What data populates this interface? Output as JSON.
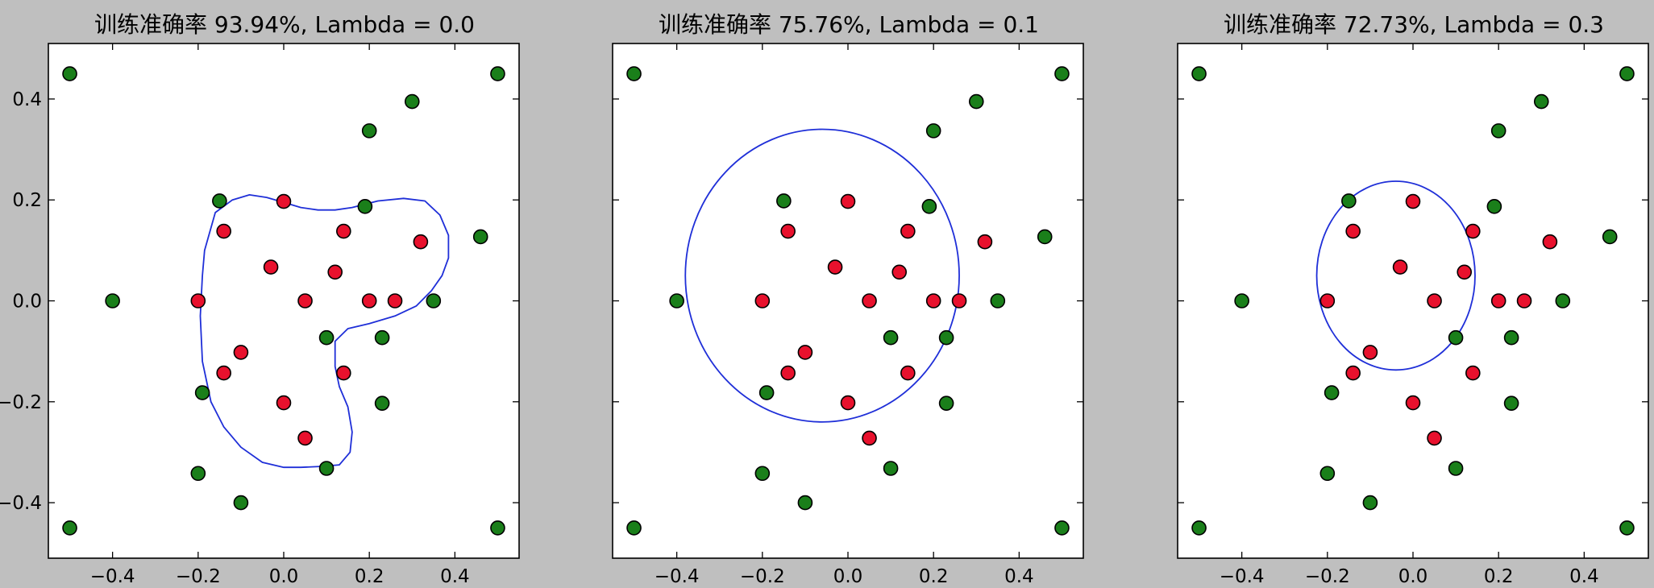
{
  "window": {
    "background": "#bfbfbf"
  },
  "chart_data": [
    {
      "type": "scatter",
      "title": "训练准确率 93.94%, Lambda = 0.0",
      "xlim": [
        -0.55,
        0.55
      ],
      "ylim": [
        -0.51,
        0.51
      ],
      "xticks": [
        -0.4,
        -0.2,
        0.0,
        0.2,
        0.4
      ],
      "xtick_labels": [
        "−0.4",
        "−0.2",
        "0.0",
        "0.2",
        "0.4"
      ],
      "yticks": [
        -0.4,
        -0.2,
        0.0,
        0.2,
        0.4
      ],
      "ytick_labels": [
        "−0.4",
        "−0.2",
        "0.0",
        "0.2",
        "0.4"
      ],
      "grid": false,
      "boundary_color": "#1f2fd8",
      "boundary": [
        [
          -0.185,
          0.1
        ],
        [
          -0.16,
          0.175
        ],
        [
          -0.12,
          0.2
        ],
        [
          -0.08,
          0.21
        ],
        [
          -0.04,
          0.205
        ],
        [
          0.0,
          0.195
        ],
        [
          0.04,
          0.185
        ],
        [
          0.08,
          0.18
        ],
        [
          0.12,
          0.18
        ],
        [
          0.16,
          0.185
        ],
        [
          0.22,
          0.198
        ],
        [
          0.28,
          0.203
        ],
        [
          0.33,
          0.198
        ],
        [
          0.365,
          0.17
        ],
        [
          0.385,
          0.13
        ],
        [
          0.385,
          0.085
        ],
        [
          0.37,
          0.05
        ],
        [
          0.345,
          0.02
        ],
        [
          0.31,
          -0.01
        ],
        [
          0.26,
          -0.03
        ],
        [
          0.2,
          -0.045
        ],
        [
          0.15,
          -0.055
        ],
        [
          0.12,
          -0.08
        ],
        [
          0.12,
          -0.13
        ],
        [
          0.13,
          -0.17
        ],
        [
          0.15,
          -0.21
        ],
        [
          0.16,
          -0.26
        ],
        [
          0.155,
          -0.3
        ],
        [
          0.13,
          -0.325
        ],
        [
          0.09,
          -0.328
        ],
        [
          0.04,
          -0.33
        ],
        [
          0.0,
          -0.33
        ],
        [
          -0.05,
          -0.32
        ],
        [
          -0.1,
          -0.29
        ],
        [
          -0.14,
          -0.25
        ],
        [
          -0.17,
          -0.2
        ],
        [
          -0.19,
          -0.12
        ],
        [
          -0.195,
          -0.03
        ],
        [
          -0.19,
          0.05
        ]
      ],
      "series": [
        {
          "color": "#1a7f1a",
          "points": [
            [
              -0.5,
              0.45
            ],
            [
              -0.5,
              -0.45
            ],
            [
              0.5,
              0.45
            ],
            [
              0.5,
              -0.45
            ],
            [
              0.3,
              0.395
            ],
            [
              0.2,
              0.337
            ],
            [
              -0.4,
              0.0
            ],
            [
              -0.15,
              0.198
            ],
            [
              0.19,
              0.187
            ],
            [
              0.46,
              0.127
            ],
            [
              0.35,
              0.0
            ],
            [
              0.1,
              -0.073
            ],
            [
              0.23,
              -0.073
            ],
            [
              -0.19,
              -0.182
            ],
            [
              0.23,
              -0.203
            ],
            [
              -0.2,
              -0.342
            ],
            [
              0.1,
              -0.332
            ],
            [
              -0.1,
              -0.4
            ]
          ]
        },
        {
          "color": "#e8112d",
          "points": [
            [
              0.0,
              0.197
            ],
            [
              -0.14,
              0.138
            ],
            [
              0.14,
              0.138
            ],
            [
              0.32,
              0.117
            ],
            [
              -0.03,
              0.067
            ],
            [
              0.12,
              0.057
            ],
            [
              -0.2,
              0.0
            ],
            [
              0.05,
              0.0
            ],
            [
              0.2,
              0.0
            ],
            [
              0.26,
              0.0
            ],
            [
              -0.1,
              -0.102
            ],
            [
              -0.14,
              -0.143
            ],
            [
              0.14,
              -0.143
            ],
            [
              0.0,
              -0.202
            ],
            [
              0.05,
              -0.272
            ]
          ]
        }
      ]
    },
    {
      "type": "scatter",
      "title": "训练准确率 75.76%, Lambda = 0.1",
      "xlim": [
        -0.55,
        0.55
      ],
      "ylim": [
        -0.51,
        0.51
      ],
      "xticks": [
        -0.4,
        -0.2,
        0.0,
        0.2,
        0.4
      ],
      "xtick_labels": [
        "−0.4",
        "−0.2",
        "0.0",
        "0.2",
        "0.4"
      ],
      "yticks": [
        -0.4,
        -0.2,
        0.0,
        0.2,
        0.4
      ],
      "ytick_labels": [],
      "grid": false,
      "boundary_color": "#1f2fd8",
      "boundary_ellipse": {
        "cx": -0.06,
        "cy": 0.05,
        "rx": 0.32,
        "ry": 0.29
      },
      "series": [
        {
          "color": "#1a7f1a",
          "points": [
            [
              -0.5,
              0.45
            ],
            [
              -0.5,
              -0.45
            ],
            [
              0.5,
              0.45
            ],
            [
              0.5,
              -0.45
            ],
            [
              0.3,
              0.395
            ],
            [
              0.2,
              0.337
            ],
            [
              -0.4,
              0.0
            ],
            [
              -0.15,
              0.198
            ],
            [
              0.19,
              0.187
            ],
            [
              0.46,
              0.127
            ],
            [
              0.35,
              0.0
            ],
            [
              0.1,
              -0.073
            ],
            [
              0.23,
              -0.073
            ],
            [
              -0.19,
              -0.182
            ],
            [
              0.23,
              -0.203
            ],
            [
              -0.2,
              -0.342
            ],
            [
              0.1,
              -0.332
            ],
            [
              -0.1,
              -0.4
            ]
          ]
        },
        {
          "color": "#e8112d",
          "points": [
            [
              0.0,
              0.197
            ],
            [
              -0.14,
              0.138
            ],
            [
              0.14,
              0.138
            ],
            [
              0.32,
              0.117
            ],
            [
              -0.03,
              0.067
            ],
            [
              0.12,
              0.057
            ],
            [
              -0.2,
              0.0
            ],
            [
              0.05,
              0.0
            ],
            [
              0.2,
              0.0
            ],
            [
              0.26,
              0.0
            ],
            [
              -0.1,
              -0.102
            ],
            [
              -0.14,
              -0.143
            ],
            [
              0.14,
              -0.143
            ],
            [
              0.0,
              -0.202
            ],
            [
              0.05,
              -0.272
            ]
          ]
        }
      ]
    },
    {
      "type": "scatter",
      "title": "训练准确率 72.73%, Lambda = 0.3",
      "xlim": [
        -0.55,
        0.55
      ],
      "ylim": [
        -0.51,
        0.51
      ],
      "xticks": [
        -0.4,
        -0.2,
        0.0,
        0.2,
        0.4
      ],
      "xtick_labels": [
        "−0.4",
        "−0.2",
        "0.0",
        "0.2",
        "0.4"
      ],
      "yticks": [
        -0.4,
        -0.2,
        0.0,
        0.2,
        0.4
      ],
      "ytick_labels": [],
      "grid": false,
      "boundary_color": "#1f2fd8",
      "boundary_ellipse": {
        "cx": -0.04,
        "cy": 0.05,
        "rx": 0.185,
        "ry": 0.187
      },
      "series": [
        {
          "color": "#1a7f1a",
          "points": [
            [
              -0.5,
              0.45
            ],
            [
              -0.5,
              -0.45
            ],
            [
              0.5,
              0.45
            ],
            [
              0.5,
              -0.45
            ],
            [
              0.3,
              0.395
            ],
            [
              0.2,
              0.337
            ],
            [
              -0.4,
              0.0
            ],
            [
              -0.15,
              0.198
            ],
            [
              0.19,
              0.187
            ],
            [
              0.46,
              0.127
            ],
            [
              0.35,
              0.0
            ],
            [
              0.1,
              -0.073
            ],
            [
              0.23,
              -0.073
            ],
            [
              -0.19,
              -0.182
            ],
            [
              0.23,
              -0.203
            ],
            [
              -0.2,
              -0.342
            ],
            [
              0.1,
              -0.332
            ],
            [
              -0.1,
              -0.4
            ]
          ]
        },
        {
          "color": "#e8112d",
          "points": [
            [
              0.0,
              0.197
            ],
            [
              -0.14,
              0.138
            ],
            [
              0.14,
              0.138
            ],
            [
              0.32,
              0.117
            ],
            [
              -0.03,
              0.067
            ],
            [
              0.12,
              0.057
            ],
            [
              -0.2,
              0.0
            ],
            [
              0.05,
              0.0
            ],
            [
              0.2,
              0.0
            ],
            [
              0.26,
              0.0
            ],
            [
              -0.1,
              -0.102
            ],
            [
              -0.14,
              -0.143
            ],
            [
              0.14,
              -0.143
            ],
            [
              0.0,
              -0.202
            ],
            [
              0.05,
              -0.272
            ]
          ]
        }
      ]
    }
  ]
}
